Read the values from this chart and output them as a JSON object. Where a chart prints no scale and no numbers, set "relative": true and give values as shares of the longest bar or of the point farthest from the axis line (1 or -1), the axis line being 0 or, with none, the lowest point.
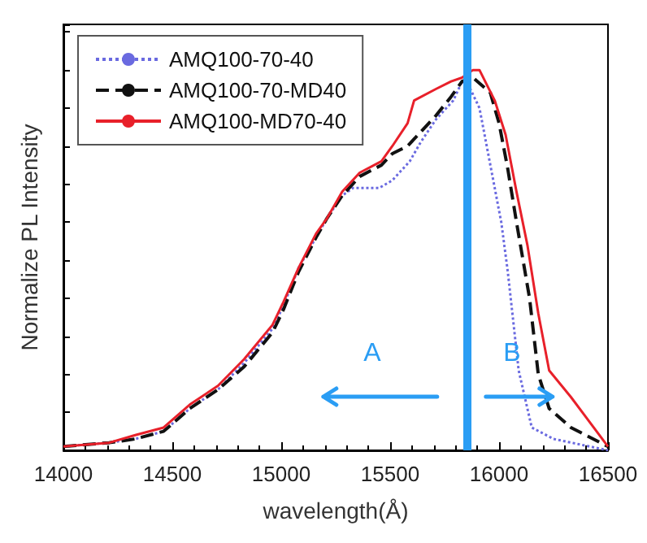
{
  "chart_data": {
    "type": "line",
    "relative": true,
    "xlabel": "wavelength(Å)",
    "ylabel": "Normalize PL Intensity",
    "xlim": [
      14000,
      16500
    ],
    "xticks": [
      14000,
      14500,
      15000,
      15500,
      16000,
      16500
    ],
    "legend": "top left",
    "grid": false,
    "marker": "none",
    "series": [
      {
        "name": "AMQ100-70-40",
        "color": "#6a6ae0",
        "line_style": "dotted",
        "x": [
          14000,
          14210,
          14330,
          14460,
          14580,
          14710,
          14830,
          14960,
          15010,
          15080,
          15160,
          15210,
          15280,
          15330,
          15400,
          15450,
          15510,
          15590,
          15640,
          15710,
          15790,
          15830,
          15860,
          15910,
          15960,
          16010,
          16040,
          16090,
          16150,
          16250,
          16500
        ],
        "values": [
          0.01,
          0.02,
          0.03,
          0.05,
          0.11,
          0.16,
          0.23,
          0.32,
          0.38,
          0.48,
          0.56,
          0.61,
          0.67,
          0.69,
          0.69,
          0.69,
          0.71,
          0.76,
          0.81,
          0.87,
          0.92,
          0.97,
          0.96,
          0.9,
          0.75,
          0.6,
          0.47,
          0.21,
          0.06,
          0.03,
          0.0
        ]
      },
      {
        "name": "AMQ100-70-MD40",
        "color": "#111111",
        "line_style": "dashed",
        "x": [
          14000,
          14210,
          14330,
          14460,
          14580,
          14710,
          14830,
          14960,
          15010,
          15080,
          15160,
          15210,
          15280,
          15360,
          15460,
          15510,
          15580,
          15710,
          15780,
          15830,
          15880,
          15960,
          16000,
          16040,
          16080,
          16140,
          16180,
          16230,
          16330,
          16500
        ],
        "values": [
          0.01,
          0.02,
          0.03,
          0.05,
          0.11,
          0.16,
          0.22,
          0.31,
          0.37,
          0.47,
          0.56,
          0.61,
          0.67,
          0.72,
          0.75,
          0.78,
          0.8,
          0.88,
          0.93,
          0.97,
          0.98,
          0.94,
          0.86,
          0.74,
          0.6,
          0.4,
          0.2,
          0.11,
          0.06,
          0.01
        ]
      },
      {
        "name": "AMQ100-MD70-40",
        "color": "#e8202a",
        "line_style": "solid",
        "x": [
          14000,
          14210,
          14330,
          14460,
          14580,
          14710,
          14830,
          14960,
          15010,
          15080,
          15160,
          15210,
          15280,
          15360,
          15460,
          15510,
          15580,
          15610,
          15710,
          15780,
          15830,
          15880,
          15910,
          15980,
          16030,
          16080,
          16130,
          16180,
          16230,
          16330,
          16500
        ],
        "values": [
          0.01,
          0.02,
          0.04,
          0.06,
          0.12,
          0.17,
          0.24,
          0.33,
          0.39,
          0.48,
          0.57,
          0.61,
          0.68,
          0.73,
          0.76,
          0.8,
          0.86,
          0.92,
          0.95,
          0.97,
          0.98,
          1.0,
          1.0,
          0.92,
          0.83,
          0.68,
          0.54,
          0.36,
          0.21,
          0.14,
          0.01
        ]
      }
    ],
    "ref_lines": [
      {
        "axis": "x",
        "value": 15850,
        "color": "#2a9df4",
        "line_style": "solid"
      }
    ],
    "annotations": [
      "A",
      "B"
    ]
  }
}
